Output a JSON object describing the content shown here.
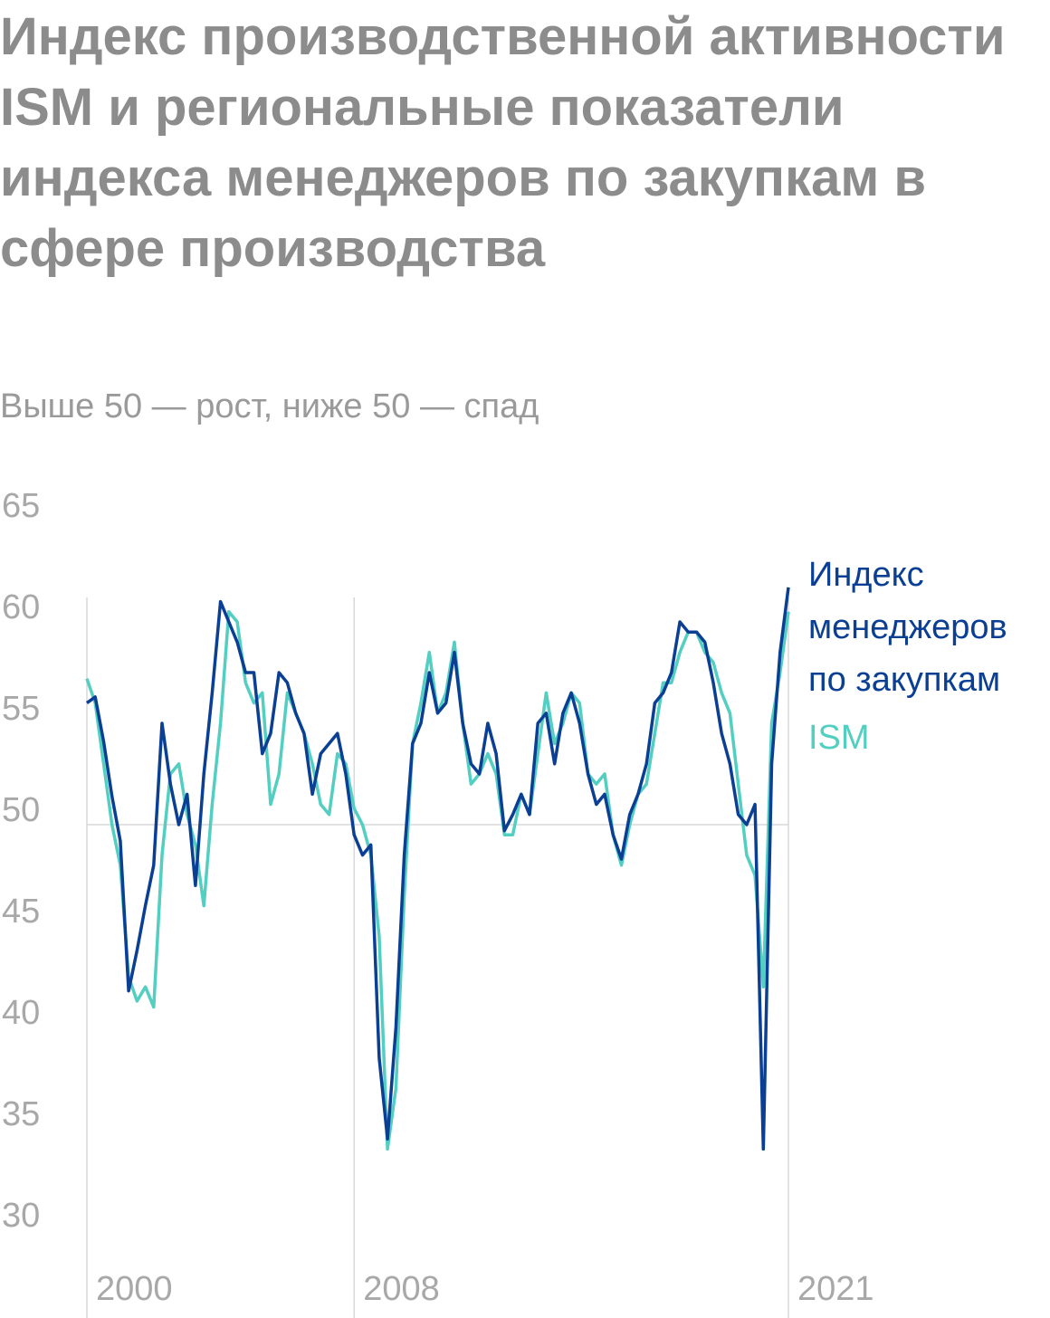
{
  "chart_data": {
    "type": "line",
    "title": "Индекс производственной активности ISM и региональные показатели индекса менеджеров по закупкам в сфере производства",
    "subtitle": "Выше 50 — рост, ниже 50 — спад",
    "x": [
      2000,
      2000.25,
      2000.5,
      2000.75,
      2001,
      2001.25,
      2001.5,
      2001.75,
      2002,
      2002.25,
      2002.5,
      2002.75,
      2003,
      2003.25,
      2003.5,
      2003.75,
      2004,
      2004.25,
      2004.5,
      2004.75,
      2005,
      2005.25,
      2005.5,
      2005.75,
      2006,
      2006.25,
      2006.5,
      2006.75,
      2007,
      2007.25,
      2007.5,
      2007.75,
      2008,
      2008.25,
      2008.5,
      2008.75,
      2009,
      2009.25,
      2009.5,
      2009.75,
      2010,
      2010.25,
      2010.5,
      2010.75,
      2011,
      2011.25,
      2011.5,
      2011.75,
      2012,
      2012.25,
      2012.5,
      2012.75,
      2013,
      2013.25,
      2013.5,
      2013.75,
      2014,
      2014.25,
      2014.5,
      2014.75,
      2015,
      2015.25,
      2015.5,
      2015.75,
      2016,
      2016.25,
      2016.5,
      2016.75,
      2017,
      2017.25,
      2017.5,
      2017.75,
      2018,
      2018.25,
      2018.5,
      2018.75,
      2019,
      2019.25,
      2019.5,
      2019.75,
      2020,
      2020.25,
      2020.5,
      2020.75,
      2021
    ],
    "series": [
      {
        "name": "Индекс менеджеров по закупкам",
        "color": "#0b3f94",
        "values": [
          56,
          56.3,
          54.1,
          51.4,
          49.2,
          41.8,
          43.8,
          46,
          48,
          55,
          52,
          50,
          51.5,
          47,
          52.5,
          56.5,
          61,
          60,
          59,
          57.5,
          57.5,
          53.5,
          54.5,
          57.5,
          57,
          55.5,
          54.5,
          51.5,
          53.5,
          54,
          54.5,
          52.5,
          49.5,
          48.5,
          49,
          38.5,
          34.5,
          40,
          48.5,
          54,
          55,
          57.5,
          55.5,
          56,
          58.5,
          55,
          53,
          52.5,
          55,
          53.5,
          49.7,
          50.5,
          51.5,
          50.5,
          55,
          55.5,
          53,
          55.5,
          56.5,
          55,
          52.5,
          51,
          51.5,
          49.5,
          48.3,
          50.5,
          51.5,
          53,
          56,
          56.5,
          57.5,
          60,
          59.5,
          59.5,
          59,
          57,
          54.5,
          53,
          50.5,
          50,
          51,
          34,
          53,
          58.5,
          61.7
        ]
      },
      {
        "name": "ISM",
        "color": "#52cfc1",
        "values": [
          57.2,
          56,
          53,
          50,
          48,
          42.5,
          41.3,
          42,
          41,
          48.5,
          52.5,
          53,
          50.5,
          49,
          46,
          51,
          55,
          60.5,
          60,
          57,
          56,
          56.5,
          51,
          52.5,
          56.5,
          55.5,
          54.5,
          53,
          51,
          50.5,
          53.5,
          53,
          50.8,
          50,
          48.5,
          44.5,
          34,
          37,
          46.5,
          54,
          56,
          58.5,
          55.5,
          56.5,
          59,
          55,
          52,
          52.5,
          53.5,
          52.5,
          49.5,
          49.5,
          51.5,
          50.5,
          53.5,
          56.5,
          54,
          55,
          56.5,
          56,
          52.5,
          52,
          52.5,
          49.5,
          48,
          50,
          51.5,
          52,
          54.5,
          57,
          57,
          58.5,
          59.5,
          59.5,
          58.5,
          58,
          56.5,
          55.5,
          52,
          48.5,
          47.5,
          42,
          55,
          57.5,
          60.5
        ]
      }
    ],
    "xlim": [
      2000,
      2021
    ],
    "xticks": [
      2000,
      2008,
      2021
    ],
    "ylim": [
      30,
      65
    ],
    "yticks": [
      30,
      35,
      40,
      45,
      50,
      55,
      60,
      65
    ],
    "hline": 50
  }
}
